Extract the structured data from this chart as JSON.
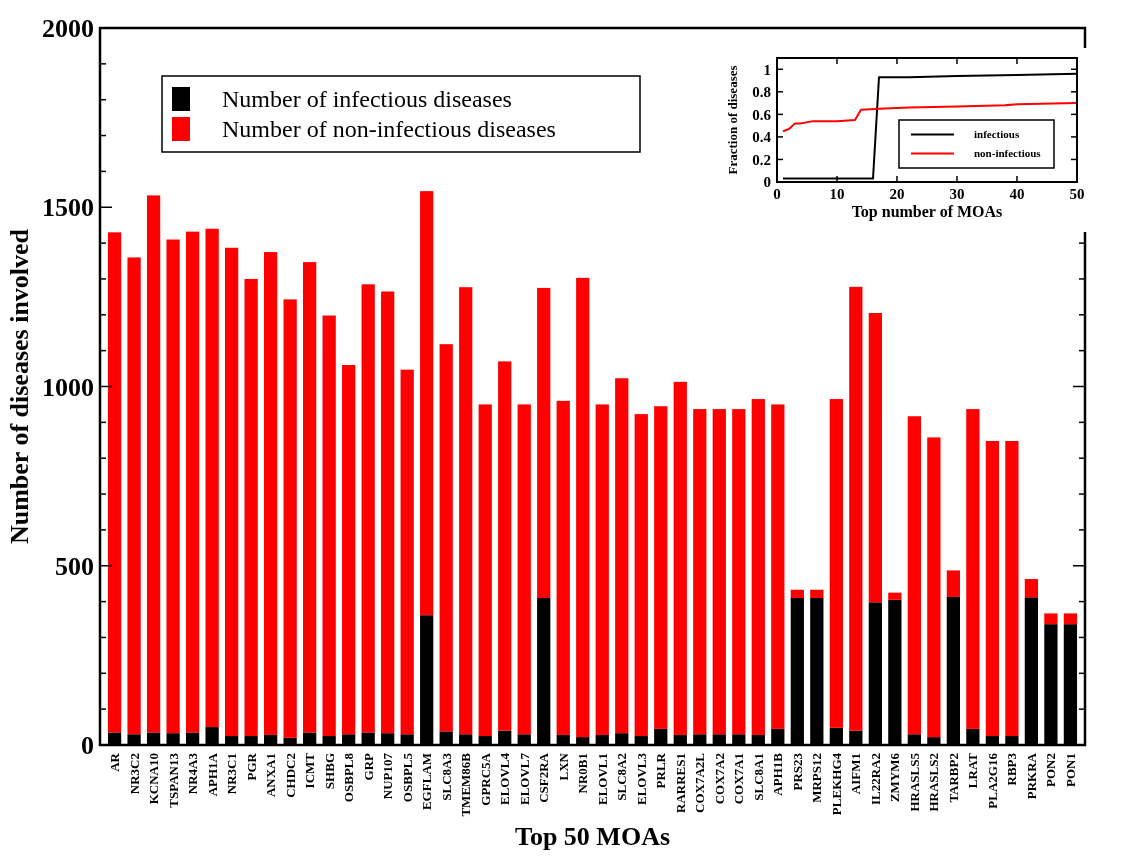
{
  "chart_data": [
    {
      "type": "bar",
      "stacked": true,
      "xlabel": "Top 50 MOAs",
      "ylabel": "Number of diseases involved",
      "categories": [
        "AR",
        "NR3C2",
        "KCNA10",
        "TSPAN13",
        "NR4A3",
        "APH1A",
        "NR3C1",
        "PGR",
        "ANXA1",
        "CHDC2",
        "ICMT",
        "SHBG",
        "OSBPL8",
        "GRP",
        "NUP107",
        "OSBPL5",
        "EGFLAM",
        "SLC8A3",
        "TMEM86B",
        "GPRC5A",
        "ELOVL4",
        "ELOVL7",
        "CSF2RA",
        "LXN",
        "NR0B1",
        "ELOVL1",
        "SLC8A2",
        "ELOVL3",
        "PRLR",
        "RARRES1",
        "COX7A2L",
        "COX7A2",
        "COX7A1",
        "SLC8A1",
        "APH1B",
        "PRS23",
        "MRPS12",
        "PLEKHG4",
        "AIFM1",
        "IL22RA2",
        "ZMYM6",
        "HRASLS5",
        "HRASLS2",
        "TARBP2",
        "LRAT",
        "PLA2G16",
        "RBP3",
        "PRKRA",
        "PON2",
        "PON1"
      ],
      "series": [
        {
          "name": "Number of infectious diseases",
          "color": "#000000",
          "values": [
            35,
            30,
            35,
            33,
            35,
            50,
            25,
            25,
            28,
            20,
            35,
            25,
            30,
            35,
            33,
            30,
            362,
            38,
            30,
            25,
            40,
            30,
            410,
            28,
            22,
            28,
            33,
            25,
            45,
            28,
            30,
            30,
            30,
            28,
            45,
            410,
            410,
            48,
            40,
            398,
            405,
            30,
            22,
            413,
            45,
            25,
            25,
            412,
            337,
            337
          ]
        },
        {
          "name": "Number of non-infectious diseases",
          "color": "#ff0000",
          "values": [
            1395,
            1330,
            1498,
            1377,
            1397,
            1390,
            1362,
            1275,
            1347,
            1223,
            1312,
            1173,
            1030,
            1250,
            1232,
            1017,
            1183,
            1080,
            1247,
            925,
            1030,
            920,
            865,
            932,
            1281,
            922,
            990,
            898,
            900,
            985,
            907,
            907,
            907,
            937,
            905,
            23,
            23,
            917,
            1238,
            807,
            20,
            887,
            836,
            74,
            892,
            823,
            823,
            51,
            30,
            30
          ]
        }
      ],
      "ylim": [
        0,
        2000
      ],
      "yticks": [
        0,
        {
          "value": 100,
          "label": null
        },
        {
          "value": 200,
          "label": null
        },
        {
          "value": 300,
          "label": null
        },
        {
          "value": 400,
          "label": null
        },
        500,
        {
          "value": 600,
          "label": null
        },
        {
          "value": 700,
          "label": null
        },
        {
          "value": 800,
          "label": null
        },
        {
          "value": 900,
          "label": null
        },
        1000,
        {
          "value": 1100,
          "label": null
        },
        {
          "value": 1200,
          "label": null
        },
        {
          "value": 1300,
          "label": null
        },
        {
          "value": 1400,
          "label": null
        },
        1500,
        {
          "value": 1600,
          "label": null
        },
        {
          "value": 1700,
          "label": null
        },
        {
          "value": 1800,
          "label": null
        },
        {
          "value": 1900,
          "label": null
        },
        2000
      ],
      "legend": "top left",
      "grid": false
    },
    {
      "type": "line",
      "xlabel": "Top number of MOAs",
      "ylabel": "Fraction of diseases",
      "xlim": [
        0,
        50
      ],
      "xticks": [
        0,
        10,
        20,
        30,
        40,
        50
      ],
      "ylim": [
        0,
        1.1
      ],
      "yticks": [
        0,
        0.2,
        0.4,
        0.6,
        0.8,
        1
      ],
      "legend": "right",
      "grid": false,
      "line_style": "solid",
      "marker": "none",
      "series": [
        {
          "name": "infectious",
          "color": "#000000",
          "x": [
            1,
            5,
            10,
            16,
            17,
            22,
            30,
            40,
            50
          ],
          "values": [
            0.03,
            0.03,
            0.03,
            0.03,
            0.93,
            0.93,
            0.94,
            0.95,
            0.96
          ]
        },
        {
          "name": "non-infectious",
          "color": "#ff0000",
          "x": [
            1,
            2,
            3,
            4,
            6,
            10,
            13,
            14,
            17,
            22,
            30,
            38,
            40,
            50
          ],
          "values": [
            0.45,
            0.47,
            0.52,
            0.52,
            0.54,
            0.54,
            0.55,
            0.64,
            0.65,
            0.66,
            0.67,
            0.68,
            0.69,
            0.7
          ]
        }
      ]
    }
  ]
}
